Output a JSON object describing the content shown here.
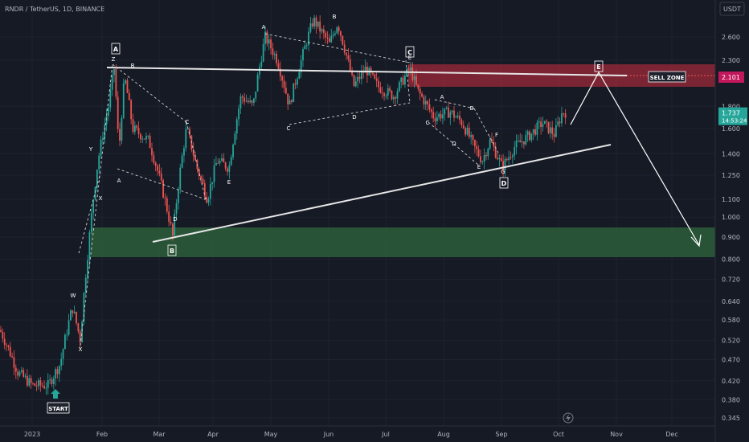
{
  "header": {
    "symbol_line": "RNDR / TetherUS, 1D, BINANCE",
    "currency": "USDT"
  },
  "chart_data": {
    "type": "candlestick",
    "title": "RNDR / TetherUS, 1D, BINANCE",
    "y_scale": "log",
    "y_ticks": [
      "2.600",
      "2.300",
      "2.101",
      "1.800",
      "1.737",
      "1.600",
      "1.400",
      "1.250",
      "1.100",
      "1.000",
      "0.900",
      "0.800",
      "0.720",
      "0.640",
      "0.580",
      "0.520",
      "0.470",
      "0.420",
      "0.380",
      "0.345"
    ],
    "x_ticks": [
      "2023",
      "Feb",
      "Mar",
      "Apr",
      "May",
      "Jun",
      "Jul",
      "Aug",
      "Sep",
      "Oct",
      "Nov",
      "Dec"
    ],
    "last_price": "1.737",
    "countdown": "14:53:24",
    "sell_zone_price": "2.101",
    "colors": {
      "up": "#26a69a",
      "down": "#ef5350",
      "background": "#161a25",
      "sell_zone": "#9e2a3a",
      "buy_zone": "#2c5e3a",
      "price_tag": "#26a69a",
      "sell_tag": "#c2185b"
    },
    "annotations": {
      "start": "START",
      "sell_zone": "SELL ZONE",
      "boxed": [
        "A",
        "B",
        "C",
        "D",
        "E"
      ],
      "wave_labels": [
        "W",
        "X",
        "Y",
        "X",
        "Z",
        "B",
        "A",
        "C",
        "D",
        "E",
        "A",
        "B",
        "C",
        "D",
        "E",
        "A",
        "B",
        "C",
        "D",
        "E",
        "F",
        "G"
      ]
    }
  }
}
